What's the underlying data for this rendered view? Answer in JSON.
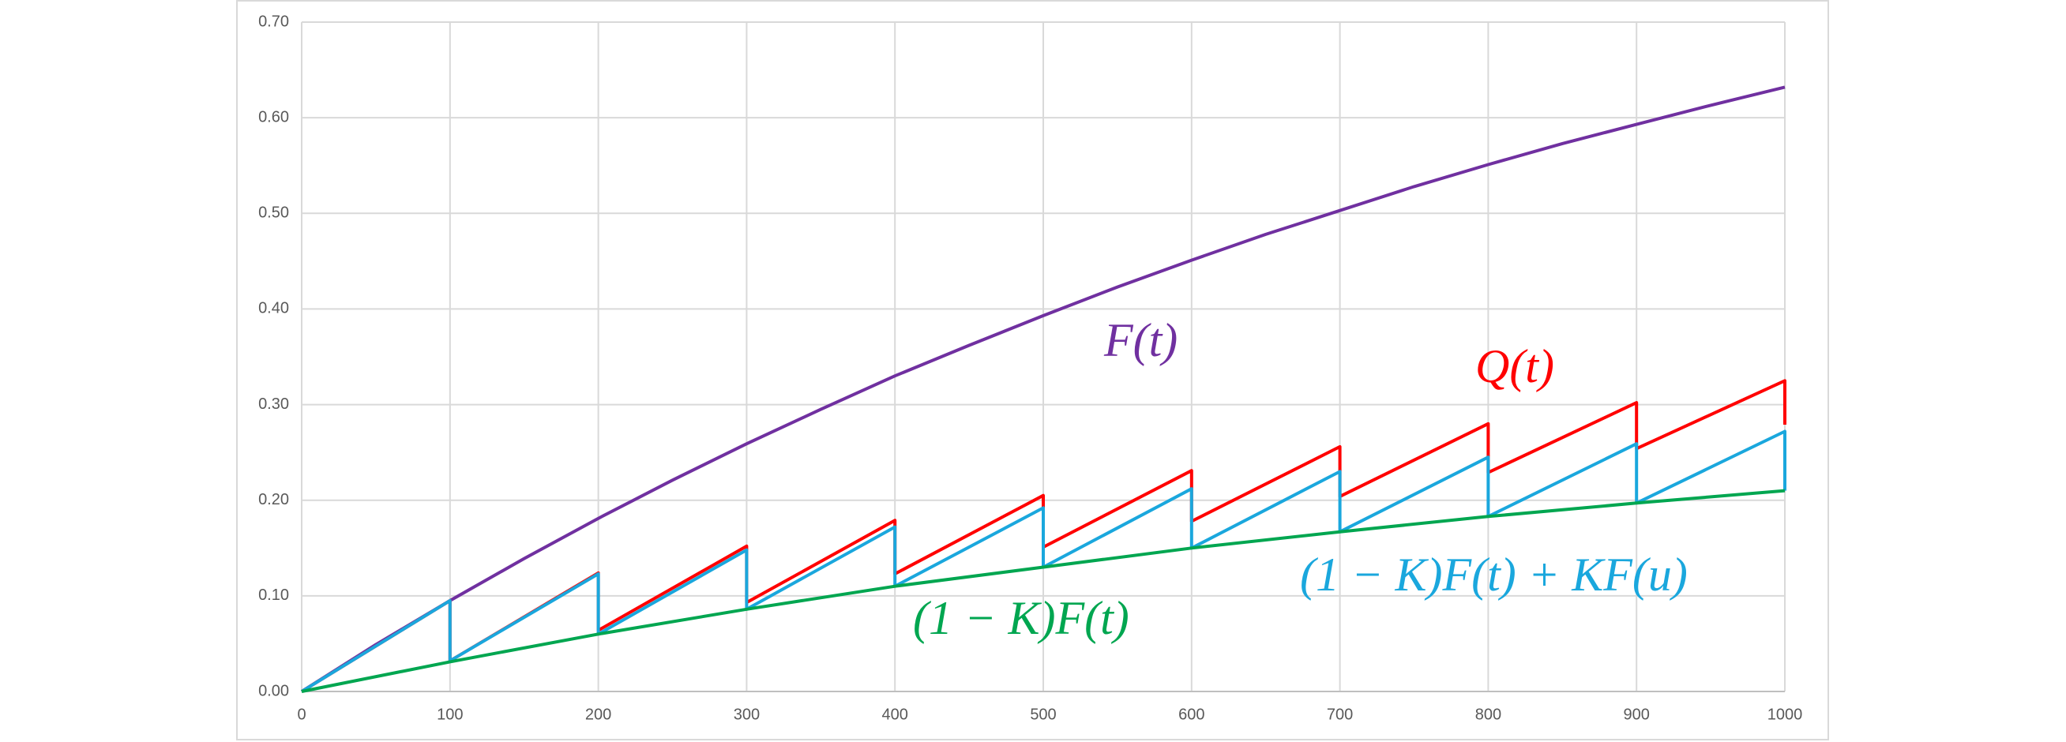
{
  "chart_data": {
    "type": "line",
    "xlim": [
      0,
      1000
    ],
    "xticks": [
      0,
      100,
      200,
      300,
      400,
      500,
      600,
      700,
      800,
      900,
      1000
    ],
    "ylim": [
      0,
      0.7
    ],
    "yticks": [
      {
        "value": 0,
        "label": "0.00"
      },
      {
        "value": 0.1,
        "label": "0.10"
      },
      {
        "value": 0.2,
        "label": "0.20"
      },
      {
        "value": 0.3,
        "label": "0.30"
      },
      {
        "value": 0.4,
        "label": "0.40"
      },
      {
        "value": 0.5,
        "label": "0.50"
      },
      {
        "value": 0.6,
        "label": "0.60"
      },
      {
        "value": 0.7,
        "label": "0.70"
      }
    ],
    "grid": true,
    "series": [
      {
        "name": "F(t)",
        "color": "#7030a0",
        "x": [
          0,
          50,
          100,
          150,
          200,
          250,
          300,
          350,
          400,
          450,
          500,
          550,
          600,
          650,
          700,
          750,
          800,
          850,
          900,
          950,
          1000
        ],
        "values": [
          0,
          0.049,
          0.095,
          0.139,
          0.181,
          0.221,
          0.259,
          0.295,
          0.33,
          0.362,
          0.393,
          0.423,
          0.451,
          0.478,
          0.503,
          0.528,
          0.551,
          0.573,
          0.593,
          0.613,
          0.632
        ]
      },
      {
        "name": "Q(t)",
        "color": "#ff0000",
        "x": [
          0,
          100,
          100,
          200,
          200,
          300,
          300,
          400,
          400,
          500,
          500,
          600,
          600,
          700,
          700,
          800,
          800,
          900,
          900,
          1000,
          1000
        ],
        "values": [
          0,
          0.095,
          0.032,
          0.124,
          0.064,
          0.152,
          0.093,
          0.179,
          0.123,
          0.205,
          0.151,
          0.231,
          0.178,
          0.256,
          0.204,
          0.28,
          0.229,
          0.302,
          0.254,
          0.325,
          0.279
        ]
      },
      {
        "name": "(1 − K)F(t) + KF(u)",
        "color": "#1aa7dd",
        "x": [
          0,
          100,
          100,
          200,
          200,
          300,
          300,
          400,
          400,
          500,
          500,
          600,
          600,
          700,
          700,
          800,
          800,
          900,
          900,
          1000,
          1000
        ],
        "values": [
          0,
          0.095,
          0.032,
          0.123,
          0.06,
          0.148,
          0.086,
          0.172,
          0.11,
          0.192,
          0.13,
          0.212,
          0.15,
          0.23,
          0.167,
          0.245,
          0.183,
          0.259,
          0.197,
          0.272,
          0.21
        ]
      },
      {
        "name": "(1 − K)F(t)",
        "color": "#00a650",
        "x": [
          0,
          100,
          200,
          300,
          400,
          500,
          600,
          700,
          800,
          900,
          1000
        ],
        "values": [
          0,
          0.031,
          0.06,
          0.086,
          0.11,
          0.13,
          0.15,
          0.167,
          0.183,
          0.197,
          0.21
        ]
      }
    ]
  }
}
